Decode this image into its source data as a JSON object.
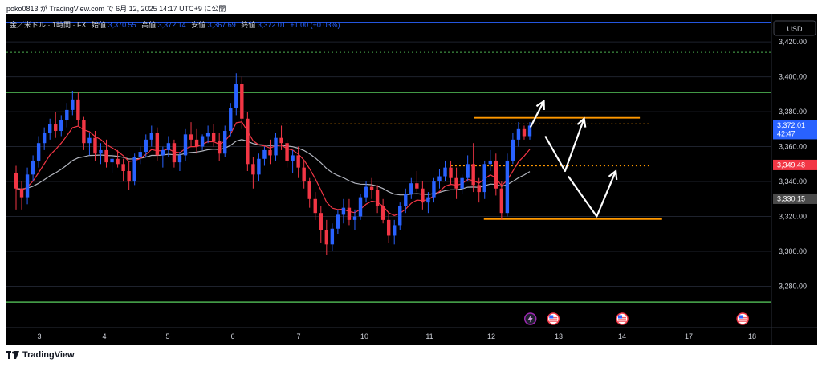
{
  "header": {
    "text": "poko0813 が TradingView.com で 6月 12, 2025 14:17 UTC+9 に公開"
  },
  "legend": {
    "symbol": "金／米ドル · 1時間 · FX",
    "open_label": "始値",
    "open_value": "3,370.55",
    "high_label": "高値",
    "high_value": "3,372.14",
    "low_label": "安値",
    "low_value": "3,367.69",
    "close_label": "終値",
    "close_value": "3,372.01",
    "change": "+1.00 (+0.03%)"
  },
  "currency": "USD",
  "footer": {
    "brand": "TradingView"
  },
  "colors": {
    "up": "#2962ff",
    "down": "#f23645",
    "ma_red": "#f23645",
    "ma_gray": "#b2b5be",
    "green": "#4caf50",
    "orange": "#ff9800",
    "blue_line": "#2962ff",
    "background": "#000000"
  },
  "chart_data": {
    "type": "line",
    "title": "金／米ドル · 1時間 · FX",
    "ylim": [
      3260,
      3432
    ],
    "y_ticks": [
      "3,420.00",
      "3,400.00",
      "3,380.00",
      "3,360.00",
      "3,340.00",
      "3,320.00",
      "3,300.00",
      "3,280.00"
    ],
    "y_tick_values": [
      3420,
      3400,
      3380,
      3360,
      3340,
      3320,
      3300,
      3280
    ],
    "x_ticks": [
      "3",
      "4",
      "5",
      "6",
      "7",
      "10",
      "11",
      "12",
      "13",
      "14",
      "17",
      "18"
    ],
    "price_labels": [
      {
        "name": "last-price",
        "value": 3372.01,
        "text": "3,372.01",
        "sub": "42:47",
        "color": "#2962ff"
      },
      {
        "name": "red-ma",
        "value": 3349.48,
        "text": "3,349.48",
        "color": "#f23645"
      },
      {
        "name": "gray-ma",
        "value": 3330.15,
        "text": "3,330.15",
        "color": "#4a4a4a"
      }
    ],
    "horizontal_lines": [
      {
        "name": "top-blue-line",
        "value": 3431,
        "color": "#2962ff",
        "style": "solid"
      },
      {
        "name": "green-dotted-line",
        "value": 3414,
        "color": "#4caf50",
        "style": "dotted"
      },
      {
        "name": "green-resistance-line",
        "value": 3391,
        "color": "#4caf50",
        "style": "solid"
      },
      {
        "name": "green-support-line",
        "value": 3271,
        "color": "#4caf50",
        "style": "solid"
      }
    ],
    "segments": [
      {
        "name": "orange-upper-line",
        "x1": 11.72,
        "x2": 14.8,
        "value": 3376.5,
        "color": "#ff9800",
        "style": "solid"
      },
      {
        "name": "orange-dotted-upper",
        "x1": 6.32,
        "x2": 15.2,
        "value": 3373,
        "color": "#ff9800",
        "style": "dotted"
      },
      {
        "name": "orange-dotted-mid",
        "x1": 11.35,
        "x2": 15.22,
        "value": 3349,
        "color": "#ff9800",
        "style": "dotted"
      },
      {
        "name": "orange-lower-line",
        "x1": 11.88,
        "x2": 15.8,
        "value": 3318.5,
        "color": "#ff9800",
        "style": "solid"
      }
    ],
    "scenario_arrows": [
      {
        "name": "arrow-up-1",
        "points": [
          [
            12.58,
            3371
          ],
          [
            12.78,
            3386
          ]
        ]
      },
      {
        "name": "arrow-zigzag-1",
        "points": [
          [
            12.8,
            3366
          ],
          [
            13.1,
            3346
          ],
          [
            13.4,
            3376
          ]
        ]
      },
      {
        "name": "arrow-zigzag-2",
        "points": [
          [
            13.15,
            3343
          ],
          [
            13.6,
            3320
          ],
          [
            13.9,
            3346
          ]
        ]
      }
    ],
    "event_icons": [
      {
        "name": "lightning-event-icon",
        "x": 12.58,
        "kind": "lightning"
      },
      {
        "name": "us-flag-event-icon-1",
        "x": 12.92,
        "kind": "flag"
      },
      {
        "name": "us-flag-event-icon-2",
        "x": 14.0,
        "kind": "flag"
      },
      {
        "name": "us-flag-event-icon-3",
        "x": 17.85,
        "kind": "flag"
      }
    ],
    "candles": [
      [
        3345,
        3349,
        3324,
        3336
      ],
      [
        3336,
        3340,
        3324,
        3331
      ],
      [
        3331,
        3348,
        3327,
        3344
      ],
      [
        3344,
        3355,
        3340,
        3352
      ],
      [
        3352,
        3366,
        3348,
        3362
      ],
      [
        3362,
        3371,
        3358,
        3368
      ],
      [
        3368,
        3376,
        3364,
        3373
      ],
      [
        3373,
        3380,
        3365,
        3369
      ],
      [
        3369,
        3378,
        3366,
        3375
      ],
      [
        3375,
        3385,
        3371,
        3381
      ],
      [
        3381,
        3392,
        3378,
        3387
      ],
      [
        3387,
        3391,
        3372,
        3375
      ],
      [
        3375,
        3377,
        3358,
        3362
      ],
      [
        3362,
        3368,
        3355,
        3365
      ],
      [
        3365,
        3369,
        3352,
        3356
      ],
      [
        3356,
        3362,
        3350,
        3358
      ],
      [
        3358,
        3364,
        3348,
        3351
      ],
      [
        3351,
        3356,
        3345,
        3353
      ],
      [
        3353,
        3358,
        3348,
        3350
      ],
      [
        3350,
        3353,
        3340,
        3346
      ],
      [
        3346,
        3352,
        3335,
        3340
      ],
      [
        3340,
        3356,
        3338,
        3354
      ],
      [
        3354,
        3360,
        3350,
        3357
      ],
      [
        3357,
        3367,
        3354,
        3364
      ],
      [
        3364,
        3372,
        3360,
        3368
      ],
      [
        3368,
        3371,
        3352,
        3355
      ],
      [
        3355,
        3360,
        3348,
        3358
      ],
      [
        3358,
        3366,
        3354,
        3362
      ],
      [
        3362,
        3364,
        3348,
        3351
      ],
      [
        3351,
        3357,
        3346,
        3355
      ],
      [
        3355,
        3370,
        3352,
        3367
      ],
      [
        3367,
        3374,
        3360,
        3364
      ],
      [
        3364,
        3370,
        3356,
        3360
      ],
      [
        3360,
        3367,
        3358,
        3366
      ],
      [
        3366,
        3372,
        3362,
        3368
      ],
      [
        3368,
        3373,
        3360,
        3363
      ],
      [
        3363,
        3368,
        3352,
        3356
      ],
      [
        3356,
        3372,
        3354,
        3369
      ],
      [
        3369,
        3385,
        3366,
        3382
      ],
      [
        3382,
        3402,
        3378,
        3396
      ],
      [
        3396,
        3400,
        3370,
        3376
      ],
      [
        3376,
        3380,
        3346,
        3350
      ],
      [
        3350,
        3354,
        3336,
        3344
      ],
      [
        3344,
        3356,
        3340,
        3353
      ],
      [
        3353,
        3360,
        3349,
        3358
      ],
      [
        3358,
        3364,
        3350,
        3355
      ],
      [
        3355,
        3368,
        3352,
        3365
      ],
      [
        3365,
        3372,
        3358,
        3362
      ],
      [
        3362,
        3364,
        3348,
        3352
      ],
      [
        3352,
        3358,
        3345,
        3355
      ],
      [
        3355,
        3360,
        3342,
        3348
      ],
      [
        3348,
        3352,
        3336,
        3340
      ],
      [
        3340,
        3342,
        3325,
        3330
      ],
      [
        3330,
        3334,
        3318,
        3322
      ],
      [
        3322,
        3326,
        3305,
        3312
      ],
      [
        3312,
        3318,
        3298,
        3304
      ],
      [
        3304,
        3316,
        3300,
        3313
      ],
      [
        3313,
        3324,
        3310,
        3321
      ],
      [
        3321,
        3330,
        3316,
        3325
      ],
      [
        3325,
        3330,
        3315,
        3318
      ],
      [
        3318,
        3324,
        3312,
        3320
      ],
      [
        3320,
        3333,
        3318,
        3331
      ],
      [
        3331,
        3340,
        3328,
        3337
      ],
      [
        3337,
        3342,
        3330,
        3335
      ],
      [
        3335,
        3338,
        3322,
        3326
      ],
      [
        3326,
        3330,
        3316,
        3318
      ],
      [
        3318,
        3322,
        3305,
        3309
      ],
      [
        3309,
        3318,
        3304,
        3315
      ],
      [
        3315,
        3328,
        3312,
        3326
      ],
      [
        3326,
        3336,
        3322,
        3333
      ],
      [
        3333,
        3342,
        3330,
        3339
      ],
      [
        3339,
        3346,
        3334,
        3336
      ],
      [
        3336,
        3340,
        3324,
        3328
      ],
      [
        3328,
        3334,
        3322,
        3331
      ],
      [
        3331,
        3342,
        3328,
        3340
      ],
      [
        3340,
        3347,
        3336,
        3343
      ],
      [
        3343,
        3352,
        3340,
        3348
      ],
      [
        3348,
        3352,
        3338,
        3342
      ],
      [
        3342,
        3348,
        3330,
        3336
      ],
      [
        3336,
        3344,
        3333,
        3342
      ],
      [
        3342,
        3355,
        3340,
        3350
      ],
      [
        3350,
        3362,
        3334,
        3338
      ],
      [
        3338,
        3342,
        3328,
        3334
      ],
      [
        3334,
        3352,
        3330,
        3350
      ],
      [
        3350,
        3358,
        3346,
        3352
      ],
      [
        3352,
        3356,
        3332,
        3336
      ],
      [
        3336,
        3340,
        3318,
        3322
      ],
      [
        3322,
        3356,
        3320,
        3352
      ],
      [
        3352,
        3368,
        3350,
        3364
      ],
      [
        3364,
        3374,
        3360,
        3370
      ],
      [
        3370,
        3372,
        3364,
        3366
      ],
      [
        3366,
        3374,
        3364,
        3372
      ]
    ]
  }
}
